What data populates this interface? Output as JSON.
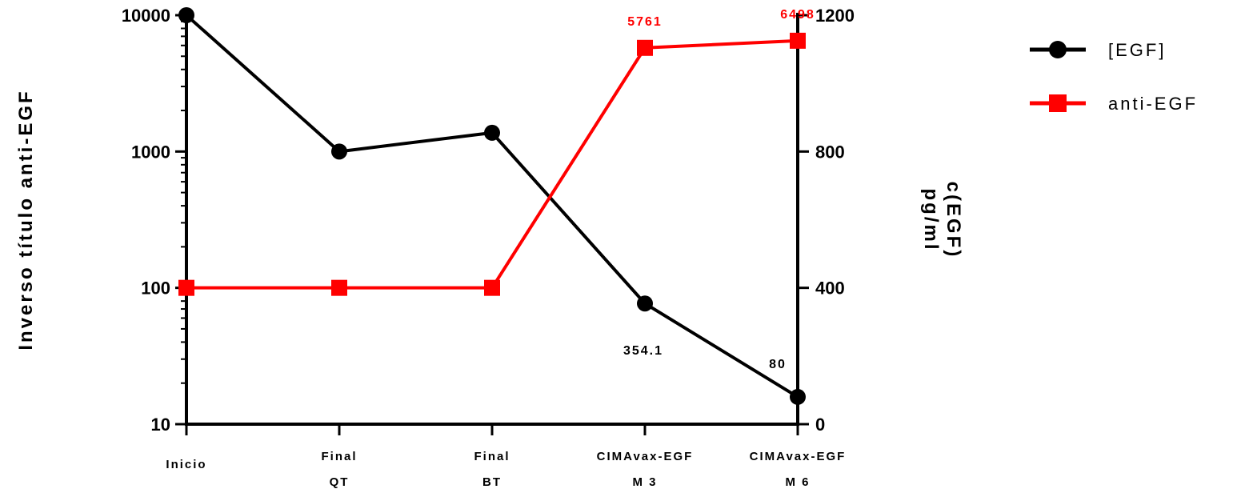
{
  "chart_data": {
    "type": "line",
    "categories": [
      [
        "Inicio"
      ],
      [
        "Final",
        "QT"
      ],
      [
        "Final",
        "BT"
      ],
      [
        "CIMAvax-EGF",
        "M 3"
      ],
      [
        "CIMAvax-EGF",
        "M 6"
      ]
    ],
    "left_axis": {
      "label": "Inverso título anti-EGF",
      "scale": "log",
      "range": [
        10,
        10000
      ],
      "ticks": [
        "10",
        "100",
        "1000",
        "10000"
      ]
    },
    "right_axis": {
      "label_lines": [
        "c(EGF)",
        "pg/ml"
      ],
      "scale": "linear",
      "range": [
        0,
        1200
      ],
      "ticks": [
        "0",
        "400",
        "800",
        "1200"
      ]
    },
    "series": [
      {
        "name": "[EGF]",
        "axis": "right",
        "color": "#000000",
        "marker": "circle",
        "values": [
          1200,
          800,
          855,
          354.1,
          80
        ],
        "labels": [
          null,
          null,
          null,
          "354.1",
          "80"
        ]
      },
      {
        "name": "anti-EGF",
        "axis": "left",
        "color": "#ff0000",
        "marker": "square",
        "values": [
          100,
          100,
          100,
          5761,
          6498
        ],
        "labels": [
          null,
          null,
          null,
          "5761",
          "6498"
        ]
      }
    ],
    "legend": {
      "placement": "top-right"
    },
    "grid": false
  }
}
